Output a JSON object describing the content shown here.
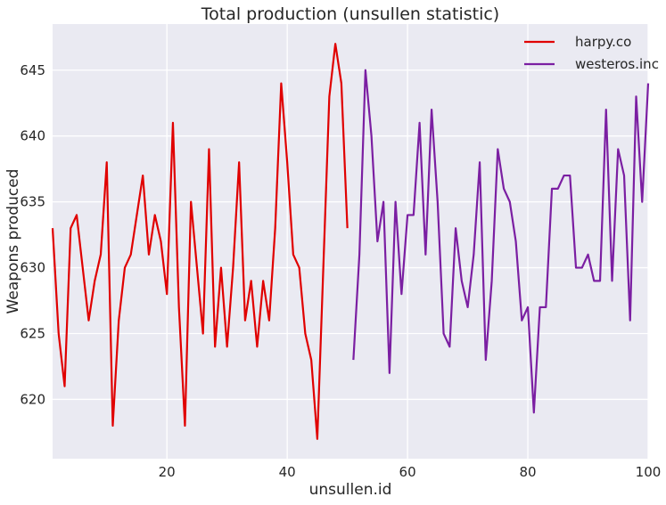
{
  "chart_data": {
    "type": "line",
    "title": "Total production (unsullen statistic)",
    "xlabel": "unsullen.id",
    "ylabel": "Weapons produced",
    "xlim": [
      1,
      100
    ],
    "ylim": [
      615.5,
      648.5
    ],
    "xticks": [
      20,
      40,
      60,
      80,
      100
    ],
    "yticks": [
      620,
      625,
      630,
      635,
      640,
      645
    ],
    "grid": true,
    "legend_position": "top-right",
    "background": "#eaeaf2",
    "series": [
      {
        "name": "harpy.co",
        "color": "#e00000",
        "x": [
          1,
          2,
          3,
          4,
          5,
          6,
          7,
          8,
          9,
          10,
          11,
          12,
          13,
          14,
          15,
          16,
          17,
          18,
          19,
          20,
          21,
          22,
          23,
          24,
          25,
          26,
          27,
          28,
          29,
          30,
          31,
          32,
          33,
          34,
          35,
          36,
          37,
          38,
          39,
          40,
          41,
          42,
          43,
          44,
          45,
          46,
          47,
          48,
          49,
          50
        ],
        "y": [
          633,
          625,
          621,
          633,
          634,
          630,
          626,
          629,
          631,
          638,
          618,
          626,
          630,
          631,
          634,
          637,
          631,
          634,
          632,
          628,
          641,
          627,
          618,
          635,
          630,
          625,
          639,
          624,
          630,
          624,
          630,
          638,
          626,
          629,
          624,
          629,
          626,
          633,
          644,
          638,
          631,
          630,
          625,
          623,
          617,
          630,
          643,
          647,
          644,
          633
        ]
      },
      {
        "name": "westeros.inc",
        "color": "#7b1fa2",
        "x": [
          51,
          52,
          53,
          54,
          55,
          56,
          57,
          58,
          59,
          60,
          61,
          62,
          63,
          64,
          65,
          66,
          67,
          68,
          69,
          70,
          71,
          72,
          73,
          74,
          75,
          76,
          77,
          78,
          79,
          80,
          81,
          82,
          83,
          84,
          85,
          86,
          87,
          88,
          89,
          90,
          91,
          92,
          93,
          94,
          95,
          96,
          97,
          98,
          99,
          100
        ],
        "y": [
          623,
          631,
          645,
          640,
          632,
          635,
          622,
          635,
          628,
          634,
          634,
          641,
          631,
          642,
          635,
          625,
          624,
          633,
          629,
          627,
          631,
          638,
          623,
          629,
          639,
          636,
          635,
          632,
          626,
          627,
          619,
          627,
          627,
          636,
          636,
          637,
          637,
          630,
          630,
          631,
          629,
          629,
          642,
          629,
          639,
          637,
          626,
          643,
          635,
          644
        ]
      }
    ]
  }
}
